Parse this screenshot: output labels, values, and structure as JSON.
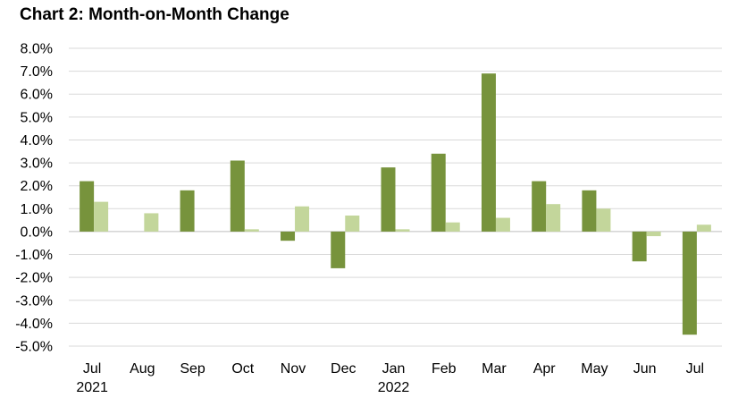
{
  "title": "Chart 2: Month-on-Month Change",
  "chart_data": {
    "type": "bar",
    "title": "Chart 2: Month-on-Month Change",
    "categories": [
      "Jul",
      "Aug",
      "Sep",
      "Oct",
      "Nov",
      "Dec",
      "Jan",
      "Feb",
      "Mar",
      "Apr",
      "May",
      "Jun",
      "Jul"
    ],
    "year_labels": [
      "2021",
      "",
      "",
      "",
      "",
      "",
      "2022",
      "",
      "",
      "",
      "",
      "",
      ""
    ],
    "series": [
      {
        "values": [
          2.2,
          0.0,
          1.8,
          3.1,
          -0.4,
          -1.6,
          2.8,
          3.4,
          6.9,
          2.2,
          1.8,
          -1.3,
          -4.5
        ],
        "color": "#77933c"
      },
      {
        "values": [
          1.3,
          0.8,
          0.0,
          0.1,
          1.1,
          0.7,
          0.1,
          0.4,
          0.6,
          1.2,
          1.0,
          -0.2,
          0.3
        ],
        "color": "#c3d69b"
      }
    ],
    "ylim": [
      -5.0,
      8.0
    ],
    "yticks": [
      "8.0%",
      "7.0%",
      "6.0%",
      "5.0%",
      "4.0%",
      "3.0%",
      "2.0%",
      "1.0%",
      "0.0%",
      "-1.0%",
      "-2.0%",
      "-3.0%",
      "-4.0%",
      "-5.0%"
    ],
    "ytick_values": [
      8,
      7,
      6,
      5,
      4,
      3,
      2,
      1,
      0,
      -1,
      -2,
      -3,
      -4,
      -5
    ],
    "xlabel": "",
    "ylabel": "",
    "grid": true,
    "legend": false
  }
}
